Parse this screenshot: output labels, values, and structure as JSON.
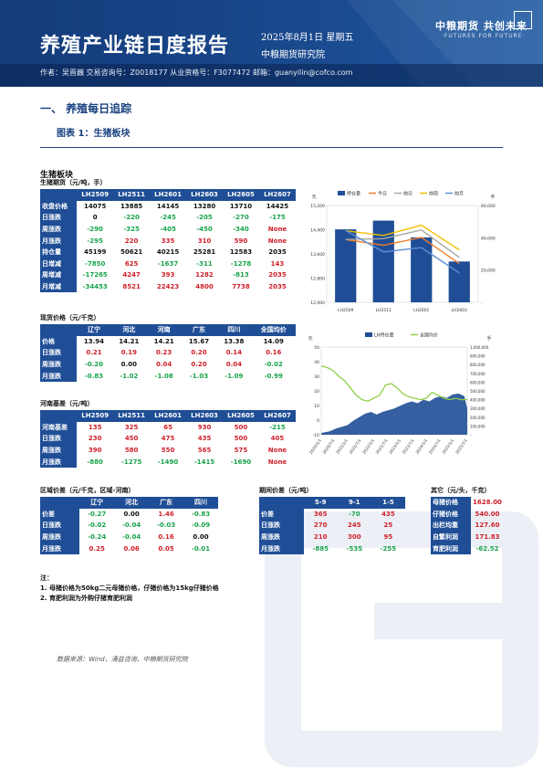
{
  "header": {
    "title": "养殖产业链日度报告",
    "date": "2025年8月1日 星期五",
    "institute": "中粮期货研究院",
    "logo_cn": "中粮期货  共创未来",
    "logo_en": "·FUTURES FOR FUTURE·",
    "author_line": "作者：吴晋巍    交易咨询号：Z0018177 从业资格号：F3077472    邮箱：guanyilin@cofco.com"
  },
  "section": {
    "heading": "一、   养殖每日追踪",
    "figure": "图表 1：生猪板块"
  },
  "futures": {
    "block_title": "生猪板块",
    "subtitle": "生猪期货（元/吨，手）",
    "columns": [
      "",
      "LH2509",
      "LH2511",
      "LH2601",
      "LH2603",
      "LH2605",
      "LH2607"
    ],
    "rows": [
      {
        "label": "收盘价格",
        "cells": [
          "14075",
          "13885",
          "14145",
          "13280",
          "13710",
          "14425"
        ],
        "tone": [
          "bl",
          "bl",
          "bl",
          "bl",
          "bl",
          "bl"
        ]
      },
      {
        "label": "日涨跌",
        "cells": [
          "0",
          "-220",
          "-245",
          "-205",
          "-270",
          "-175"
        ],
        "tone": [
          "bl",
          "neg",
          "neg",
          "neg",
          "neg",
          "neg"
        ]
      },
      {
        "label": "周涨跌",
        "cells": [
          "-290",
          "-325",
          "-405",
          "-450",
          "-340",
          "None"
        ],
        "tone": [
          "neg",
          "neg",
          "neg",
          "neg",
          "neg",
          "pos"
        ]
      },
      {
        "label": "月涨跌",
        "cells": [
          "-295",
          "220",
          "335",
          "310",
          "590",
          "None"
        ],
        "tone": [
          "neg",
          "pos",
          "pos",
          "pos",
          "pos",
          "pos"
        ]
      },
      {
        "label": "持仓量",
        "cells": [
          "45199",
          "50621",
          "40215",
          "25281",
          "12583",
          "2035"
        ],
        "tone": [
          "bl",
          "bl",
          "bl",
          "bl",
          "bl",
          "bl"
        ]
      },
      {
        "label": "日增减",
        "cells": [
          "-7850",
          "625",
          "-1637",
          "-311",
          "-1278",
          "143"
        ],
        "tone": [
          "neg",
          "pos",
          "neg",
          "neg",
          "neg",
          "pos"
        ]
      },
      {
        "label": "周增减",
        "cells": [
          "-17265",
          "4247",
          "393",
          "1282",
          "-813",
          "2035"
        ],
        "tone": [
          "neg",
          "pos",
          "pos",
          "pos",
          "neg",
          "pos"
        ]
      },
      {
        "label": "月增减",
        "cells": [
          "-34453",
          "8521",
          "22423",
          "4800",
          "7738",
          "2035"
        ],
        "tone": [
          "neg",
          "pos",
          "pos",
          "pos",
          "pos",
          "pos"
        ]
      }
    ]
  },
  "spot": {
    "subtitle": "现货价格（元/千克）",
    "columns": [
      "",
      "辽宁",
      "河北",
      "河南",
      "广东",
      "四川",
      "全国均价"
    ],
    "rows": [
      {
        "label": "价格",
        "cells": [
          "13.94",
          "14.21",
          "14.21",
          "15.67",
          "13.38",
          "14.09"
        ],
        "tone": [
          "bl",
          "bl",
          "bl",
          "bl",
          "bl",
          "bl"
        ]
      },
      {
        "label": "日涨跌",
        "cells": [
          "0.21",
          "0.19",
          "0.23",
          "0.20",
          "0.14",
          "0.16"
        ],
        "tone": [
          "pos",
          "pos",
          "pos",
          "pos",
          "pos",
          "pos"
        ]
      },
      {
        "label": "周涨跌",
        "cells": [
          "-0.20",
          "0.00",
          "0.04",
          "0.20",
          "0.04",
          "-0.02"
        ],
        "tone": [
          "neg",
          "bl",
          "pos",
          "pos",
          "pos",
          "neg"
        ]
      },
      {
        "label": "月涨跌",
        "cells": [
          "-0.83",
          "-1.02",
          "-1.08",
          "-1.03",
          "-1.09",
          "-0.99"
        ],
        "tone": [
          "neg",
          "neg",
          "neg",
          "neg",
          "neg",
          "neg"
        ]
      }
    ]
  },
  "basis": {
    "subtitle": "河南基差（元/吨）",
    "columns": [
      "",
      "LH2509",
      "LH2511",
      "LH2601",
      "LH2603",
      "LH2605",
      "LH2607"
    ],
    "rows": [
      {
        "label": "河南基差",
        "cells": [
          "135",
          "325",
          "65",
          "930",
          "500",
          "-215"
        ],
        "tone": [
          "pos",
          "pos",
          "pos",
          "pos",
          "pos",
          "neg"
        ]
      },
      {
        "label": "日涨跌",
        "cells": [
          "230",
          "450",
          "475",
          "435",
          "500",
          "405"
        ],
        "tone": [
          "pos",
          "pos",
          "pos",
          "pos",
          "pos",
          "pos"
        ]
      },
      {
        "label": "周涨跌",
        "cells": [
          "390",
          "580",
          "550",
          "565",
          "575",
          "None"
        ],
        "tone": [
          "pos",
          "pos",
          "pos",
          "pos",
          "pos",
          "pos"
        ]
      },
      {
        "label": "月涨跌",
        "cells": [
          "-880",
          "-1275",
          "-1490",
          "-1415",
          "-1690",
          "None"
        ],
        "tone": [
          "neg",
          "neg",
          "neg",
          "neg",
          "neg",
          "pos"
        ]
      }
    ]
  },
  "regional": {
    "subtitle": "区域价差（元/千克，区域-河南）",
    "columns": [
      "",
      "辽宁",
      "河北",
      "广东",
      "四川"
    ],
    "rows": [
      {
        "label": "价差",
        "cells": [
          "-0.27",
          "0.00",
          "1.46",
          "-0.83"
        ],
        "tone": [
          "neg",
          "bl",
          "pos",
          "neg"
        ]
      },
      {
        "label": "日涨跌",
        "cells": [
          "-0.02",
          "-0.04",
          "-0.03",
          "-0.09"
        ],
        "tone": [
          "neg",
          "neg",
          "neg",
          "neg"
        ]
      },
      {
        "label": "周涨跌",
        "cells": [
          "-0.24",
          "-0.04",
          "0.16",
          "0.00"
        ],
        "tone": [
          "neg",
          "neg",
          "pos",
          "bl"
        ]
      },
      {
        "label": "月涨跌",
        "cells": [
          "0.25",
          "0.06",
          "0.05",
          "-0.01"
        ],
        "tone": [
          "pos",
          "pos",
          "pos",
          "neg"
        ]
      }
    ]
  },
  "spread": {
    "subtitle": "期间价差（元/吨）",
    "columns": [
      "",
      "5-9",
      "9-1",
      "1-5"
    ],
    "rows": [
      {
        "label": "价差",
        "cells": [
          "365",
          "-70",
          "435"
        ],
        "tone": [
          "pos",
          "neg",
          "pos"
        ]
      },
      {
        "label": "日涨跌",
        "cells": [
          "270",
          "245",
          "25"
        ],
        "tone": [
          "pos",
          "pos",
          "pos"
        ]
      },
      {
        "label": "周涨跌",
        "cells": [
          "210",
          "300",
          "95"
        ],
        "tone": [
          "pos",
          "pos",
          "pos"
        ]
      },
      {
        "label": "月涨跌",
        "cells": [
          "-885",
          "-535",
          "-255"
        ],
        "tone": [
          "neg",
          "neg",
          "neg"
        ]
      }
    ]
  },
  "other": {
    "subtitle": "其它（元/头，千克）",
    "rows": [
      {
        "label": "母猪价格",
        "value": "1628.00",
        "tone": "pos"
      },
      {
        "label": "仔猪价格",
        "value": "540.00",
        "tone": "pos"
      },
      {
        "label": "出栏均重",
        "value": "127.60",
        "tone": "pos"
      },
      {
        "label": "自繁利润",
        "value": "171.83",
        "tone": "pos"
      },
      {
        "label": "育肥利润",
        "value": "-62.52",
        "tone": "neg"
      }
    ]
  },
  "notes": {
    "title": "注：",
    "items": [
      "1. 母猪价格为50kg二元母猪价格，仔猪价格为15kg仔猪价格",
      "2. 育肥利润为外购仔猪育肥利润"
    ]
  },
  "source": "数据来源：Wind，涌益咨询，中粮期货研究院",
  "chart_data": [
    {
      "type": "bar",
      "ylabel_left": "元",
      "ylabel_right": "手",
      "categories": [
        "LH2509",
        "LH2511",
        "LH2601",
        "LH2603"
      ],
      "ylim": [
        12000,
        15200
      ],
      "ylim_right": [
        0,
        60000
      ],
      "left_ticks": [
        "12,000",
        "12,800",
        "13,600",
        "14,400",
        "15,200"
      ],
      "right_ticks": [
        "-",
        "20,000",
        "40,000",
        "60,000"
      ],
      "legend": [
        "持仓量",
        "今日",
        "前日",
        "前周",
        "前月"
      ],
      "bar_series": {
        "name": "持仓量",
        "values": [
          45199,
          50621,
          40215,
          25281
        ]
      },
      "line_series": [
        {
          "name": "今日",
          "values": [
            14075,
            13885,
            14145,
            13280
          ]
        },
        {
          "name": "前日",
          "values": [
            14075,
            14105,
            14390,
            13485
          ]
        },
        {
          "name": "前周",
          "values": [
            14365,
            14210,
            14550,
            13730
          ]
        },
        {
          "name": "前月",
          "values": [
            14370,
            13665,
            13810,
            12970
          ]
        }
      ],
      "colors": {
        "持仓量": "#1f4e96",
        "今日": "#f07d2a",
        "前日": "#a6a6a6",
        "前周": "#f5c000",
        "前月": "#5b8fd6"
      }
    },
    {
      "type": "area",
      "ylabel_left": "元",
      "ylabel_right": "手",
      "ylim": [
        -10,
        50
      ],
      "ylim_right": [
        0,
        1000000
      ],
      "left_ticks": [
        "-10",
        "0",
        "10",
        "20",
        "30",
        "40",
        "50"
      ],
      "right_ticks": [
        "-",
        "100,000",
        "200,000",
        "300,000",
        "400,000",
        "500,000",
        "600,000",
        "700,000",
        "800,000",
        "900,000",
        "1,000,000"
      ],
      "x_ticks": [
        "2020/1/1",
        "2020/7/1",
        "2021/1/1",
        "2021/7/1",
        "2022/1/1",
        "2022/7/1",
        "2023/1/1",
        "2023/7/1",
        "2024/1/1",
        "2024/7/1",
        "2025/1/1",
        "2025/7/1"
      ],
      "legend": [
        "LH持仓量",
        "全国均价"
      ],
      "colors": {
        "LH持仓量": "#1f4e96",
        "全国均价": "#8fce45"
      },
      "price_points": [
        [
          0,
          37
        ],
        [
          4,
          36
        ],
        [
          8,
          34
        ],
        [
          12,
          30
        ],
        [
          16,
          27
        ],
        [
          20,
          22
        ],
        [
          24,
          17
        ],
        [
          28,
          14
        ],
        [
          32,
          13
        ],
        [
          36,
          15
        ],
        [
          40,
          17
        ],
        [
          44,
          24
        ],
        [
          48,
          25
        ],
        [
          52,
          22
        ],
        [
          56,
          18
        ],
        [
          60,
          16
        ],
        [
          64,
          15
        ],
        [
          68,
          14
        ],
        [
          72,
          15
        ],
        [
          76,
          19
        ],
        [
          80,
          17
        ],
        [
          84,
          15
        ],
        [
          88,
          14
        ],
        [
          92,
          15
        ],
        [
          96,
          14
        ],
        [
          100,
          14.1
        ]
      ],
      "oi_points": [
        [
          0,
          20000
        ],
        [
          6,
          40000
        ],
        [
          10,
          70000
        ],
        [
          14,
          90000
        ],
        [
          18,
          110000
        ],
        [
          22,
          160000
        ],
        [
          26,
          200000
        ],
        [
          30,
          240000
        ],
        [
          34,
          260000
        ],
        [
          38,
          230000
        ],
        [
          42,
          260000
        ],
        [
          46,
          280000
        ],
        [
          50,
          300000
        ],
        [
          54,
          330000
        ],
        [
          58,
          360000
        ],
        [
          62,
          380000
        ],
        [
          66,
          360000
        ],
        [
          70,
          400000
        ],
        [
          74,
          380000
        ],
        [
          78,
          420000
        ],
        [
          82,
          440000
        ],
        [
          86,
          420000
        ],
        [
          90,
          460000
        ],
        [
          94,
          470000
        ],
        [
          98,
          440000
        ],
        [
          100,
          300000
        ]
      ]
    }
  ]
}
